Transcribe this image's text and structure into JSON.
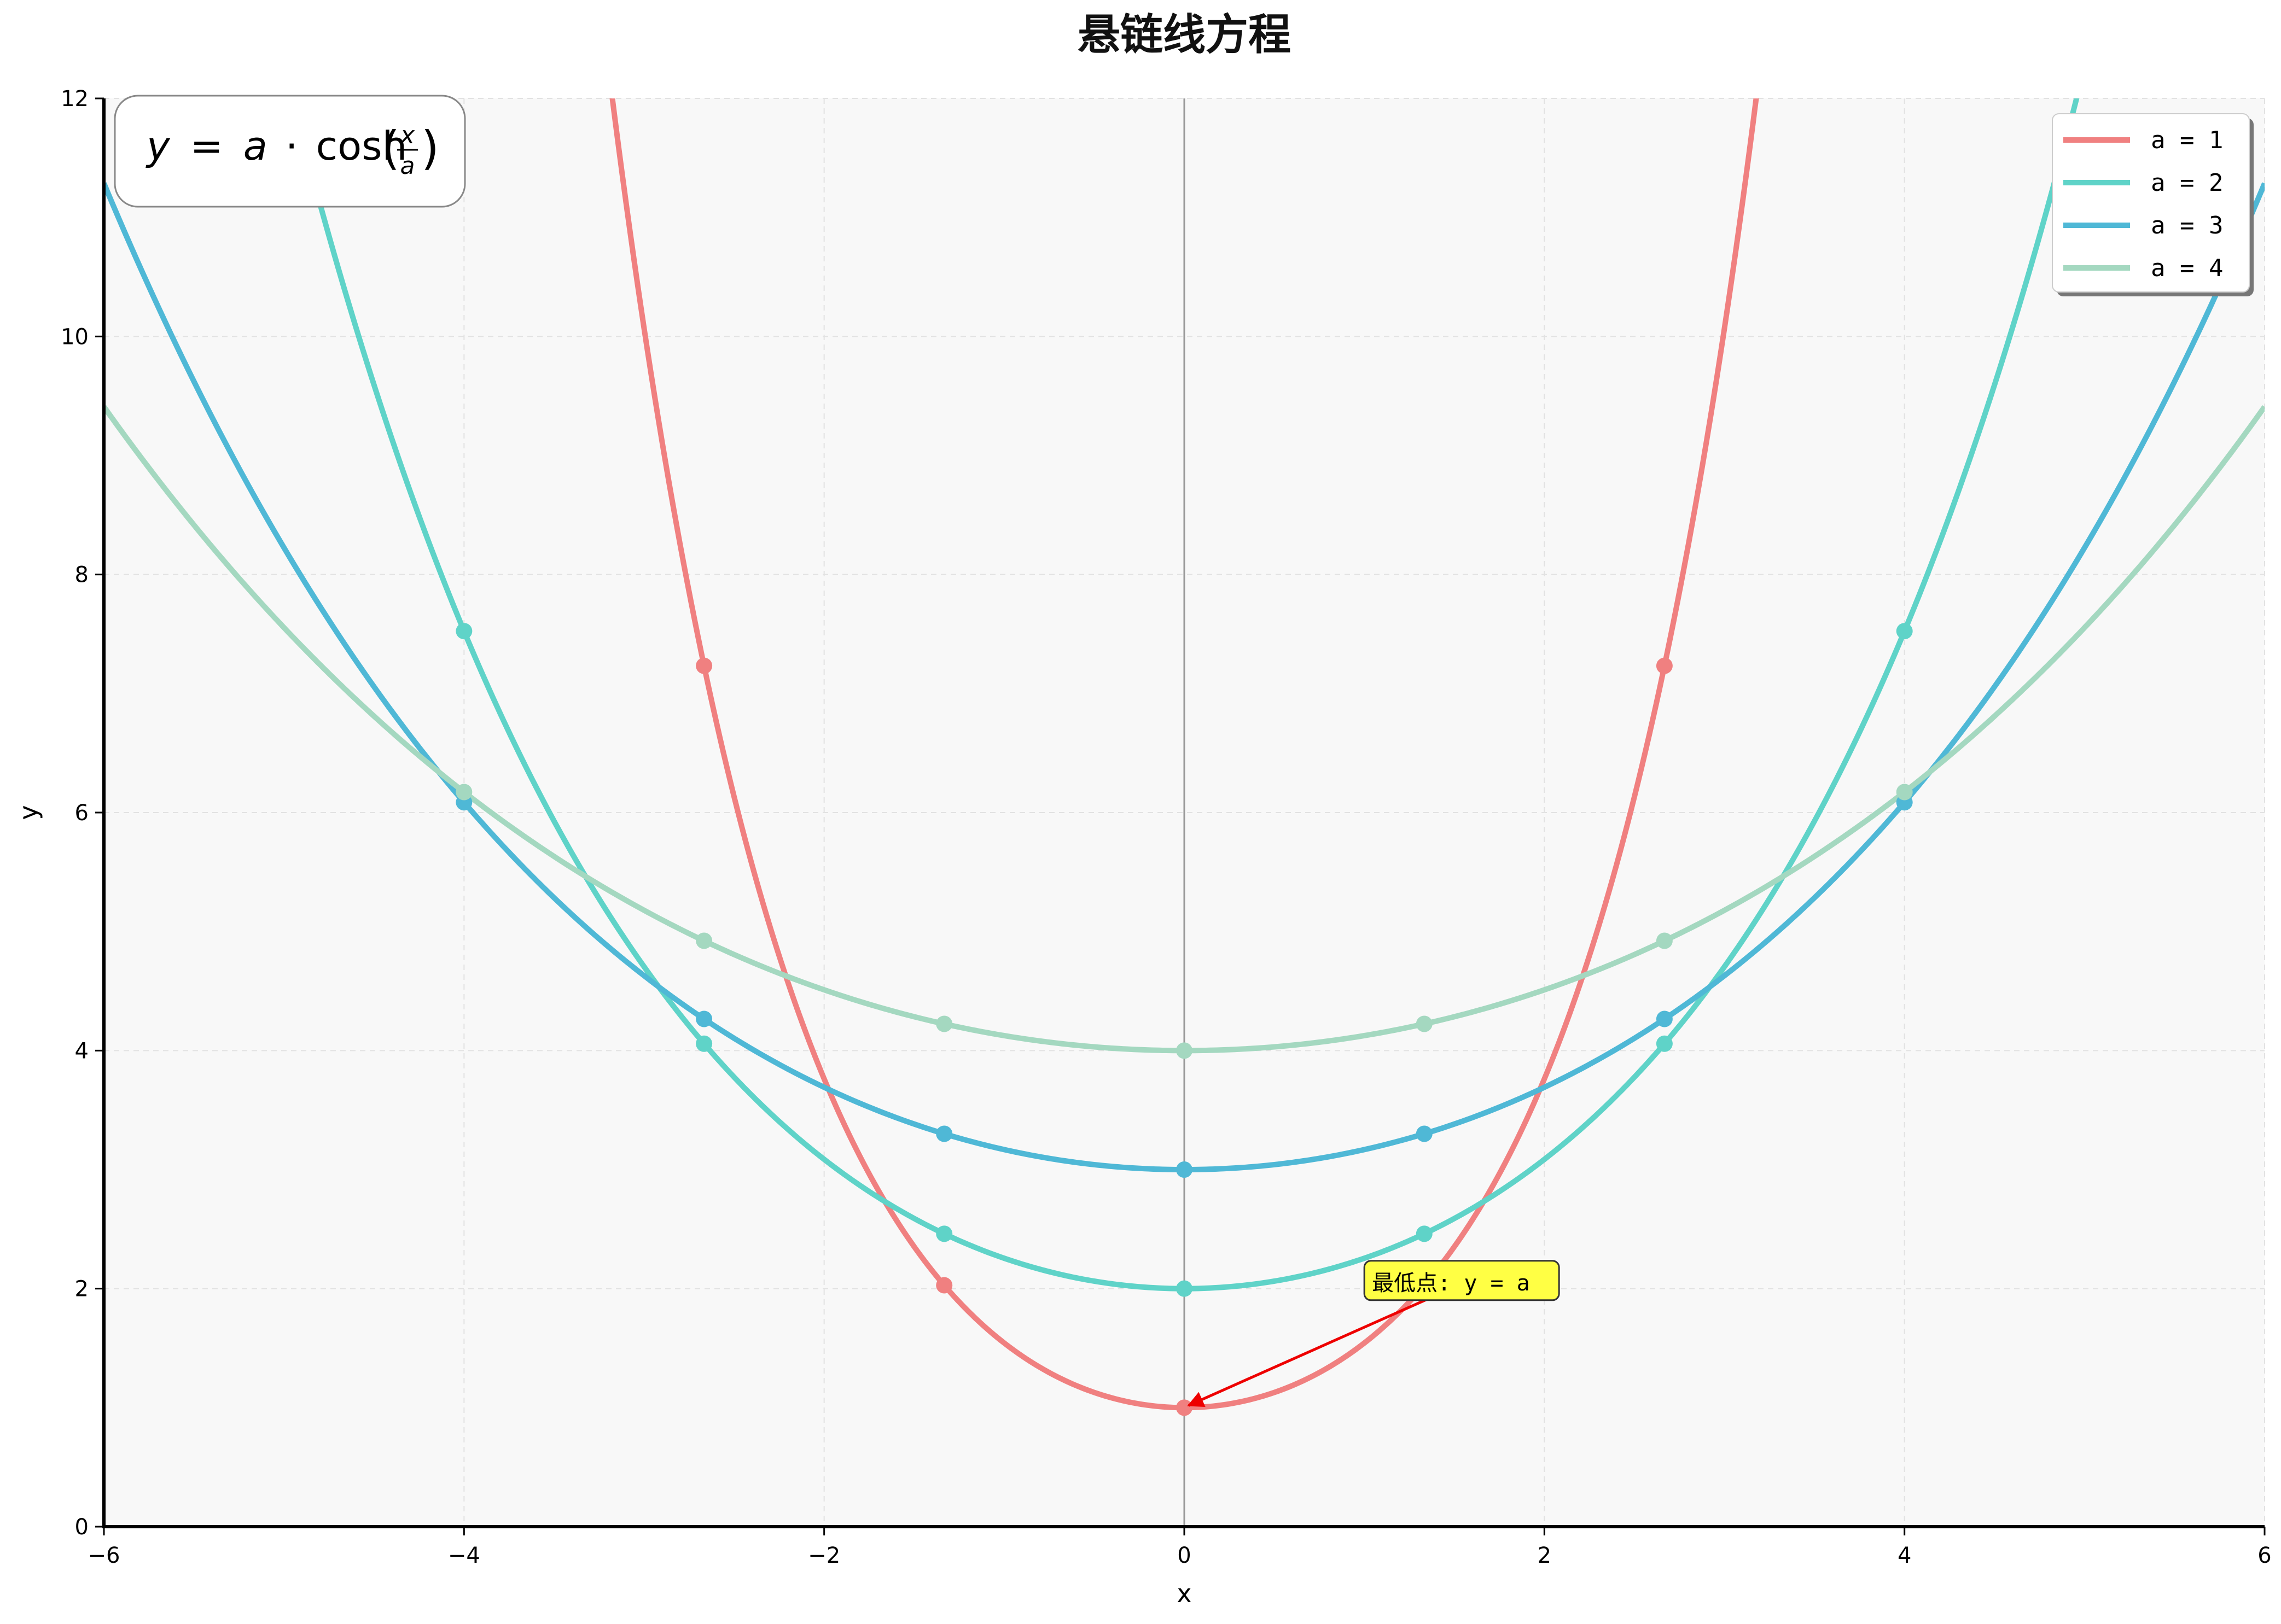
{
  "chart_data": {
    "type": "line",
    "title": "悬链线方程",
    "xlabel": "x",
    "ylabel": "y",
    "xlim": [
      -6,
      6
    ],
    "ylim": [
      0,
      12
    ],
    "grid": true,
    "legend_position": "top-right",
    "formula": {
      "lhs": "y",
      "eq": "=",
      "a": "a",
      "dot": "·",
      "func": "cosh",
      "num": "x",
      "den": "a"
    },
    "x_ticks": [
      -6,
      -4,
      -2,
      0,
      2,
      4,
      6
    ],
    "x_tick_labels": [
      "−6",
      "−4",
      "−2",
      "0",
      "2",
      "4",
      "6"
    ],
    "y_ticks": [
      0,
      2,
      4,
      6,
      8,
      10,
      12
    ],
    "y_tick_labels": [
      "0",
      "2",
      "4",
      "6",
      "8",
      "10",
      "12"
    ],
    "marker_x": [
      -4,
      -2.667,
      -1.333,
      0,
      1.333,
      2.667,
      4
    ],
    "series": [
      {
        "name": "a = 1",
        "a": 1,
        "color": "#f08080"
      },
      {
        "name": "a = 2",
        "a": 2,
        "color": "#5fd3c8"
      },
      {
        "name": "a = 3",
        "a": 3,
        "color": "#4fb8d6"
      },
      {
        "name": "a = 4",
        "a": 4,
        "color": "#a4d8c0"
      }
    ],
    "annotation": {
      "text": "最低点: y = a",
      "text_x": 1.0,
      "text_y": 2.05,
      "arrow_to": [
        0,
        1
      ],
      "arrow_color": "#ee0000",
      "box_color": "#ffff44"
    }
  }
}
